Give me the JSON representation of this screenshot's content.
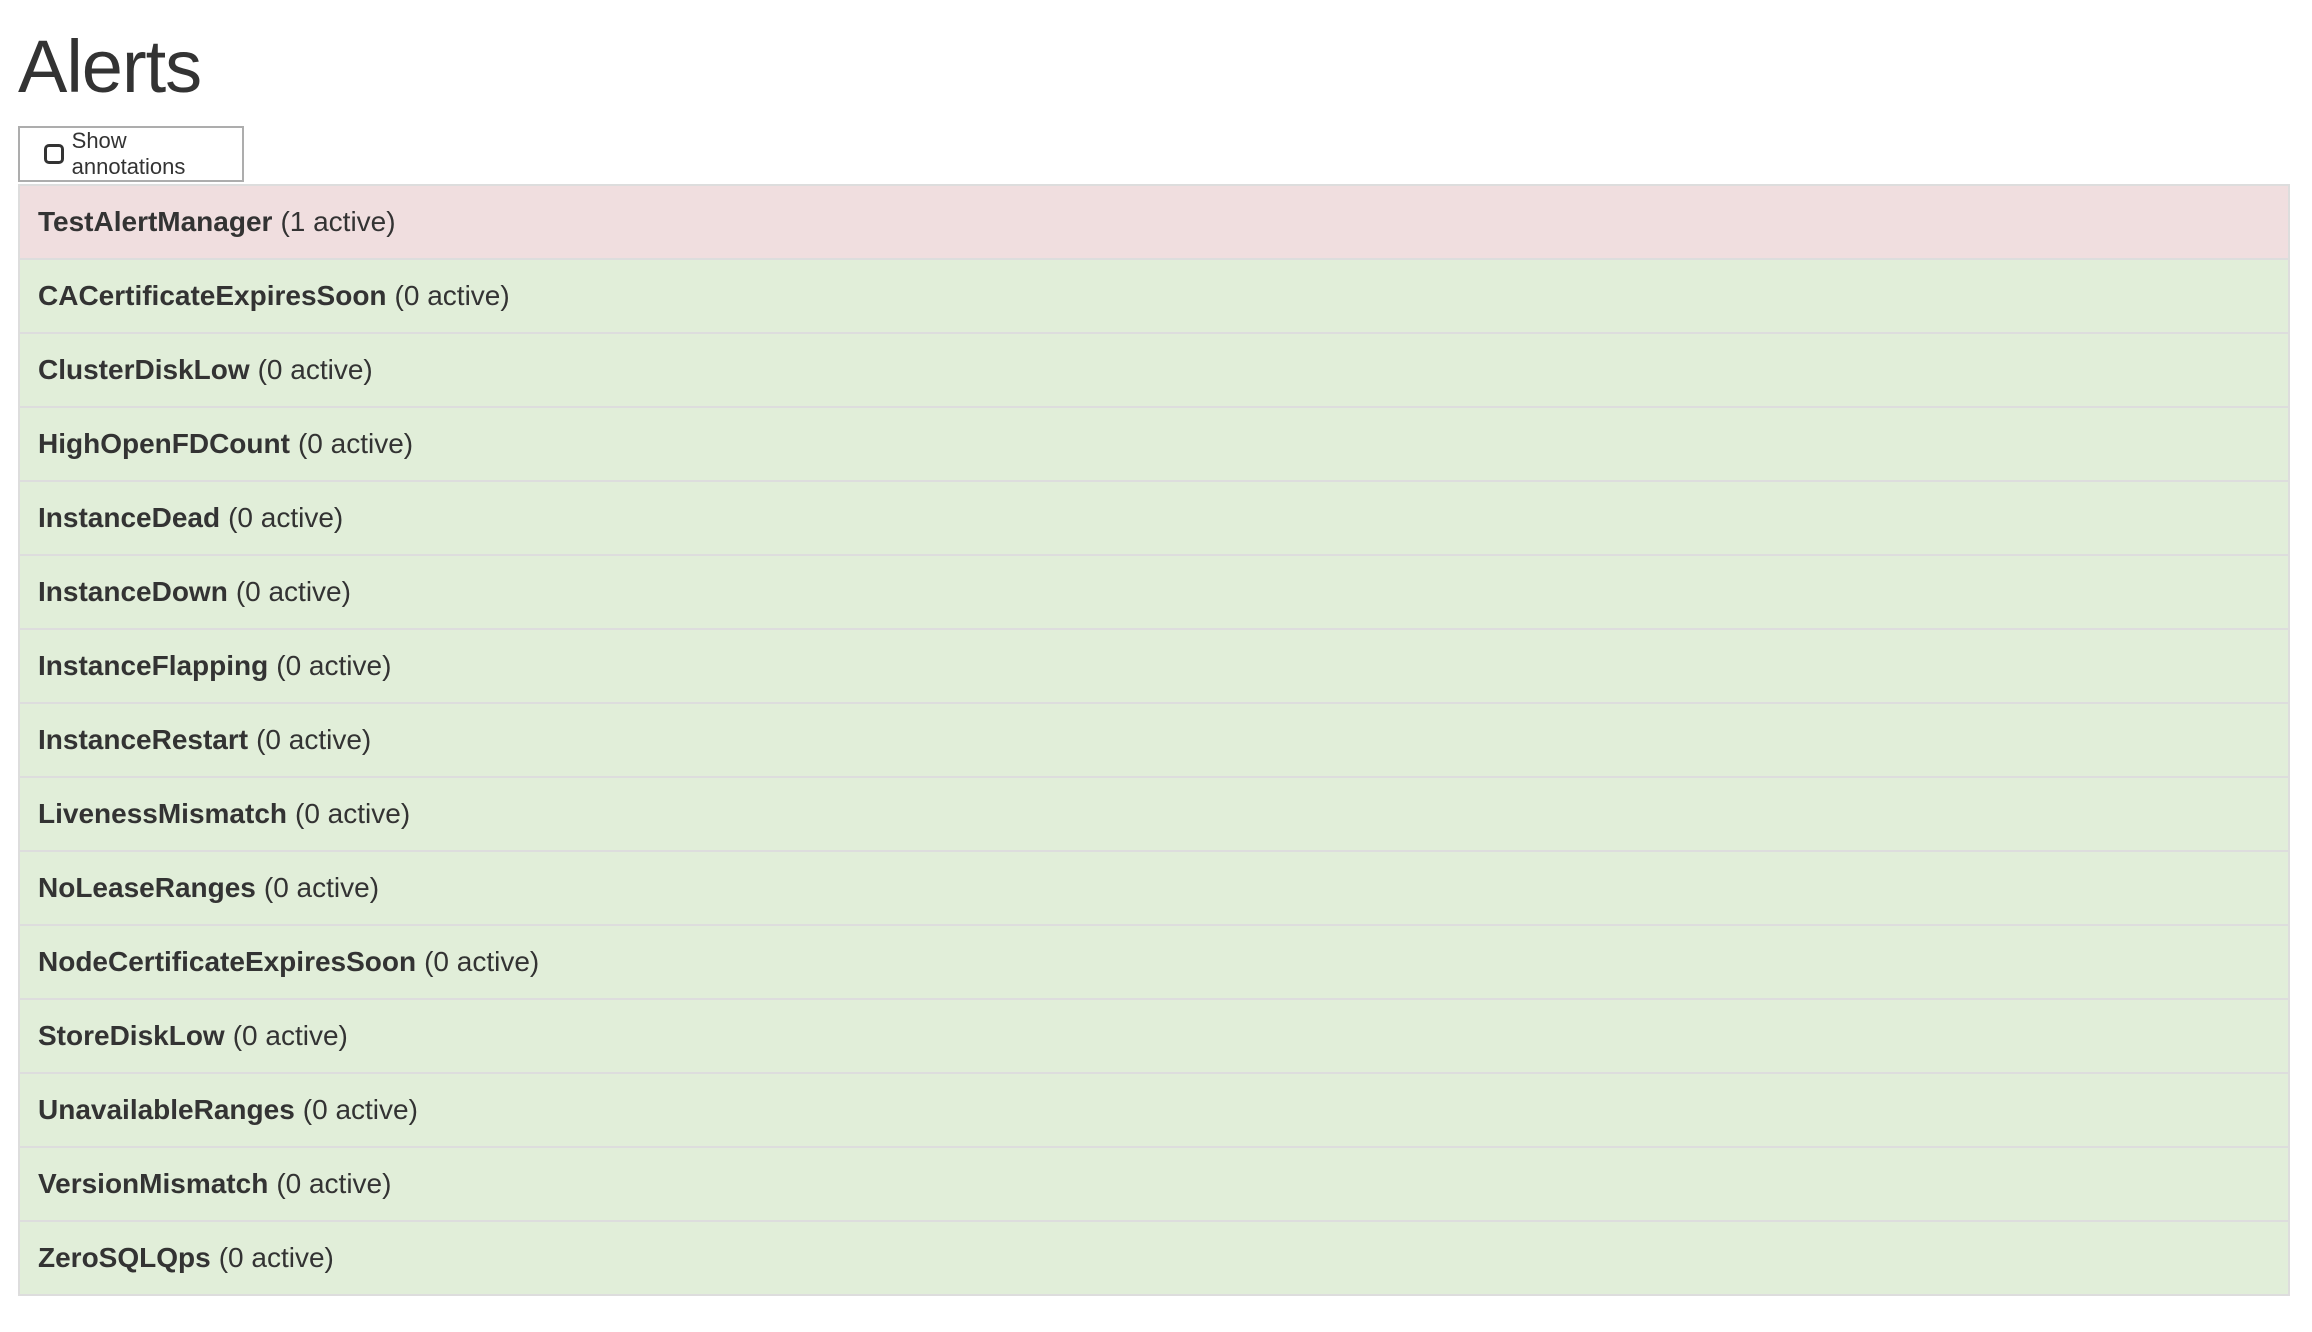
{
  "page": {
    "title": "Alerts"
  },
  "toolbar": {
    "show_annotations_label": "Show annotations",
    "show_annotations_checked": false
  },
  "colors": {
    "firing": "#f0dedf",
    "inactive": "#e1eed9"
  },
  "alerts": [
    {
      "name": "TestAlertManager",
      "count": "(1 active)",
      "state": "firing"
    },
    {
      "name": "CACertificateExpiresSoon",
      "count": "(0 active)",
      "state": "inactive"
    },
    {
      "name": "ClusterDiskLow",
      "count": "(0 active)",
      "state": "inactive"
    },
    {
      "name": "HighOpenFDCount",
      "count": "(0 active)",
      "state": "inactive"
    },
    {
      "name": "InstanceDead",
      "count": "(0 active)",
      "state": "inactive"
    },
    {
      "name": "InstanceDown",
      "count": "(0 active)",
      "state": "inactive"
    },
    {
      "name": "InstanceFlapping",
      "count": "(0 active)",
      "state": "inactive"
    },
    {
      "name": "InstanceRestart",
      "count": "(0 active)",
      "state": "inactive"
    },
    {
      "name": "LivenessMismatch",
      "count": "(0 active)",
      "state": "inactive"
    },
    {
      "name": "NoLeaseRanges",
      "count": "(0 active)",
      "state": "inactive"
    },
    {
      "name": "NodeCertificateExpiresSoon",
      "count": "(0 active)",
      "state": "inactive"
    },
    {
      "name": "StoreDiskLow",
      "count": "(0 active)",
      "state": "inactive"
    },
    {
      "name": "UnavailableRanges",
      "count": "(0 active)",
      "state": "inactive"
    },
    {
      "name": "VersionMismatch",
      "count": "(0 active)",
      "state": "inactive"
    },
    {
      "name": "ZeroSQLQps",
      "count": "(0 active)",
      "state": "inactive"
    }
  ]
}
